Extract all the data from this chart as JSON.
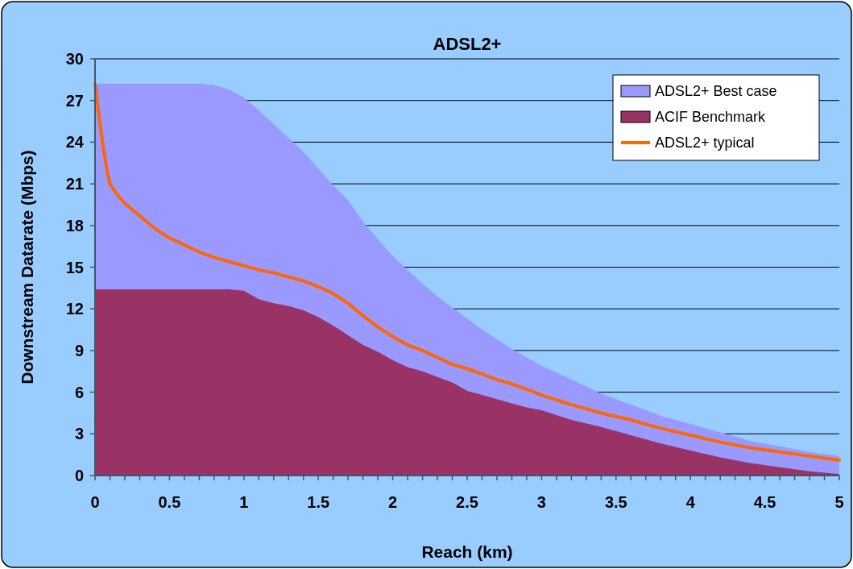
{
  "chart_data": {
    "type": "area",
    "title": "ADSL2+",
    "xlabel": "Reach (km)",
    "ylabel": "Downstream Datarate (Mbps)",
    "xlim": [
      0,
      5
    ],
    "ylim": [
      0,
      30
    ],
    "yticks": [
      0,
      3,
      6,
      9,
      12,
      15,
      18,
      21,
      24,
      27,
      30
    ],
    "xticks": [
      0,
      {
        "value": 0.1,
        "label": null
      },
      {
        "value": 0.2,
        "label": null
      },
      {
        "value": 0.3,
        "label": null
      },
      {
        "value": 0.4,
        "label": null
      },
      0.5,
      {
        "value": 0.6,
        "label": null
      },
      {
        "value": 0.7,
        "label": null
      },
      {
        "value": 0.8,
        "label": null
      },
      {
        "value": 0.9,
        "label": null
      },
      1,
      {
        "value": 1.1,
        "label": null
      },
      {
        "value": 1.2,
        "label": null
      },
      {
        "value": 1.3,
        "label": null
      },
      {
        "value": 1.4,
        "label": null
      },
      1.5,
      {
        "value": 1.6,
        "label": null
      },
      {
        "value": 1.7,
        "label": null
      },
      {
        "value": 1.8,
        "label": null
      },
      {
        "value": 1.9,
        "label": null
      },
      2,
      {
        "value": 2.1,
        "label": null
      },
      {
        "value": 2.2,
        "label": null
      },
      {
        "value": 2.3,
        "label": null
      },
      {
        "value": 2.4,
        "label": null
      },
      2.5,
      {
        "value": 2.6,
        "label": null
      },
      {
        "value": 2.7,
        "label": null
      },
      {
        "value": 2.8,
        "label": null
      },
      {
        "value": 2.9,
        "label": null
      },
      3,
      {
        "value": 3.1,
        "label": null
      },
      {
        "value": 3.2,
        "label": null
      },
      {
        "value": 3.3,
        "label": null
      },
      {
        "value": 3.4,
        "label": null
      },
      3.5,
      {
        "value": 3.6,
        "label": null
      },
      {
        "value": 3.7,
        "label": null
      },
      {
        "value": 3.8,
        "label": null
      },
      {
        "value": 3.9,
        "label": null
      },
      4,
      {
        "value": 4.1,
        "label": null
      },
      {
        "value": 4.2,
        "label": null
      },
      {
        "value": 4.3,
        "label": null
      },
      {
        "value": 4.4,
        "label": null
      },
      4.5,
      {
        "value": 4.6,
        "label": null
      },
      {
        "value": 4.7,
        "label": null
      },
      {
        "value": 4.8,
        "label": null
      },
      {
        "value": 4.9,
        "label": null
      },
      5
    ],
    "grid": "y",
    "legend": "top right",
    "series": [
      {
        "name": "ADSL2+ Best case",
        "color": "#9999ff",
        "x": [
          0,
          0.2,
          0.4,
          0.6,
          0.7,
          0.8,
          0.9,
          1.0,
          1.1,
          1.2,
          1.3,
          1.4,
          1.5,
          1.6,
          1.7,
          1.8,
          1.9,
          2.0,
          2.1,
          2.2,
          2.3,
          2.4,
          2.5,
          2.6,
          2.7,
          2.8,
          2.9,
          3.0,
          3.2,
          3.4,
          3.6,
          3.8,
          4.0,
          4.2,
          4.4,
          4.6,
          4.8,
          5.0
        ],
        "values": [
          28.2,
          28.2,
          28.2,
          28.2,
          28.2,
          28.1,
          27.8,
          27.2,
          26.3,
          25.3,
          24.3,
          23.3,
          22.1,
          20.9,
          19.8,
          18.3,
          17.0,
          15.8,
          14.8,
          13.8,
          12.9,
          12.1,
          11.3,
          10.5,
          9.8,
          9.1,
          8.5,
          7.9,
          6.9,
          5.9,
          5.1,
          4.3,
          3.7,
          3.1,
          2.5,
          2.1,
          1.7,
          1.4
        ]
      },
      {
        "name": "ACIF Benchmark",
        "color": "#993366",
        "x": [
          0,
          0.2,
          0.4,
          0.6,
          0.8,
          0.9,
          1.0,
          1.1,
          1.2,
          1.3,
          1.4,
          1.5,
          1.6,
          1.7,
          1.8,
          1.9,
          2.0,
          2.1,
          2.2,
          2.3,
          2.4,
          2.5,
          2.6,
          2.7,
          2.8,
          2.9,
          3.0,
          3.2,
          3.4,
          3.6,
          3.8,
          4.0,
          4.2,
          4.4,
          4.6,
          4.8,
          5.0
        ],
        "values": [
          13.4,
          13.4,
          13.4,
          13.4,
          13.4,
          13.4,
          13.3,
          12.7,
          12.4,
          12.2,
          11.9,
          11.4,
          10.8,
          10.1,
          9.4,
          8.9,
          8.3,
          7.8,
          7.5,
          7.1,
          6.7,
          6.1,
          5.8,
          5.5,
          5.2,
          4.9,
          4.7,
          4.0,
          3.5,
          2.9,
          2.3,
          1.8,
          1.3,
          0.9,
          0.6,
          0.3,
          0.1
        ]
      },
      {
        "name": "ADSL2+ typical",
        "type": "line",
        "color": "#ff6600",
        "x": [
          0,
          0.02,
          0.05,
          0.08,
          0.1,
          0.15,
          0.2,
          0.3,
          0.4,
          0.5,
          0.6,
          0.7,
          0.8,
          0.9,
          1.0,
          1.1,
          1.2,
          1.3,
          1.4,
          1.5,
          1.6,
          1.7,
          1.8,
          1.9,
          2.0,
          2.1,
          2.2,
          2.3,
          2.4,
          2.5,
          2.6,
          2.7,
          2.8,
          2.9,
          3.0,
          3.2,
          3.4,
          3.6,
          3.8,
          4.0,
          4.2,
          4.4,
          4.6,
          4.8,
          5.0
        ],
        "values": [
          28.2,
          26.5,
          24,
          22,
          21,
          20.2,
          19.6,
          18.7,
          17.8,
          17.1,
          16.6,
          16.1,
          15.7,
          15.4,
          15.1,
          14.8,
          14.6,
          14.3,
          14.0,
          13.6,
          13.1,
          12.4,
          11.5,
          10.7,
          10.0,
          9.4,
          9.0,
          8.5,
          8.0,
          7.7,
          7.3,
          6.9,
          6.6,
          6.2,
          5.8,
          5.1,
          4.5,
          4.0,
          3.4,
          2.9,
          2.4,
          2.0,
          1.7,
          1.4,
          1.1
        ]
      }
    ]
  }
}
